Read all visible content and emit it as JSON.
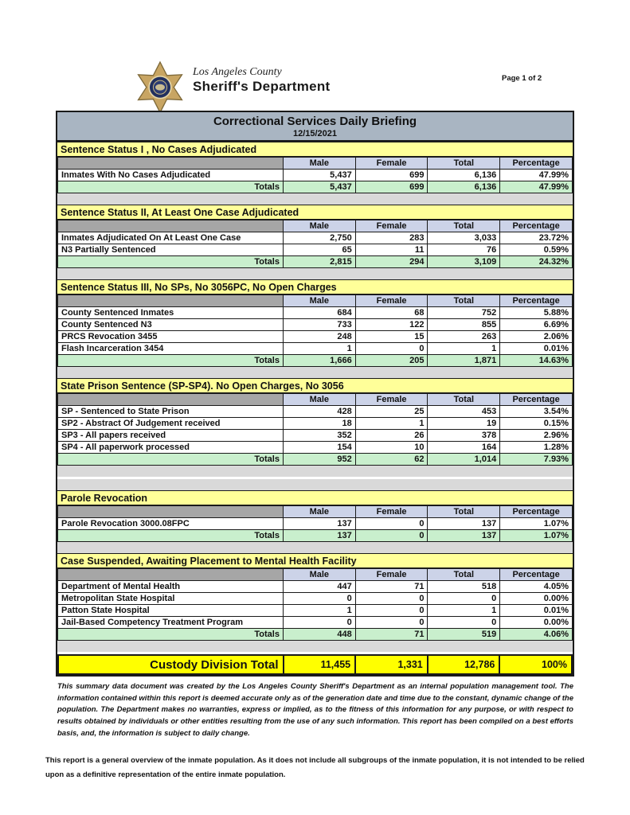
{
  "page": {
    "page_label": "Page 1 of 2"
  },
  "logo": {
    "county": "Los Angeles County",
    "department": "Sheriff's Department"
  },
  "title": {
    "heading": "Correctional Services Daily Briefing",
    "date": "12/15/2021"
  },
  "columns": [
    "Male",
    "Female",
    "Total",
    "Percentage"
  ],
  "totals_label": "Totals",
  "sections": [
    {
      "title": "Sentence Status I , No Cases Adjudicated",
      "rows": [
        [
          "Inmates With No Cases Adjudicated",
          "5,437",
          "699",
          "6,136",
          "47.99%"
        ]
      ],
      "totals": [
        "5,437",
        "699",
        "6,136",
        "47.99%"
      ],
      "spacers_after": 1
    },
    {
      "title": "Sentence Status II, At Least One Case Adjudicated",
      "rows": [
        [
          "Inmates Adjudicated On At Least One Case",
          "2,750",
          "283",
          "3,033",
          "23.72%"
        ],
        [
          "N3 Partially Sentenced",
          "65",
          "11",
          "76",
          "0.59%"
        ]
      ],
      "totals": [
        "2,815",
        "294",
        "3,109",
        "24.32%"
      ],
      "spacers_after": 1
    },
    {
      "title": "Sentence Status III, No SPs, No 3056PC, No Open Charges",
      "rows": [
        [
          "County Sentenced Inmates",
          "684",
          "68",
          "752",
          "5.88%"
        ],
        [
          "County Sentenced N3",
          "733",
          "122",
          "855",
          "6.69%"
        ],
        [
          "PRCS Revocation 3455",
          "248",
          "15",
          "263",
          "2.06%"
        ],
        [
          "Flash Incarceration 3454",
          "1",
          "0",
          "1",
          "0.01%"
        ]
      ],
      "totals": [
        "1,666",
        "205",
        "1,871",
        "14.63%"
      ],
      "spacers_after": 1
    },
    {
      "title": "State Prison Sentence (SP-SP4). No Open Charges, No 3056",
      "rows": [
        [
          "SP - Sentenced to State Prison",
          "428",
          "25",
          "453",
          "3.54%"
        ],
        [
          "SP2 - Abstract Of Judgement received",
          "18",
          "1",
          "19",
          "0.15%"
        ],
        [
          "SP3 - All papers received",
          "352",
          "26",
          "378",
          "2.96%"
        ],
        [
          "SP4 - All paperwork processed",
          "154",
          "10",
          "164",
          "1.28%"
        ]
      ],
      "totals": [
        "952",
        "62",
        "1,014",
        "7.93%"
      ],
      "spacers_after": 2
    },
    {
      "title": "Parole Revocation",
      "rows": [
        [
          "Parole Revocation 3000.08FPC",
          "137",
          "0",
          "137",
          "1.07%"
        ]
      ],
      "totals": [
        "137",
        "0",
        "137",
        "1.07%"
      ],
      "spacers_after": 1
    },
    {
      "title": "Case Suspended, Awaiting Placement to Mental Health Facility",
      "rows": [
        [
          "Department of Mental Health",
          "447",
          "71",
          "518",
          "4.05%"
        ],
        [
          "Metropolitan State Hospital",
          "0",
          "0",
          "0",
          "0.00%"
        ],
        [
          "Patton State Hospital",
          "1",
          "0",
          "1",
          "0.01%"
        ],
        [
          "Jail-Based Competency Treatment Program",
          "0",
          "0",
          "0",
          "0.00%"
        ]
      ],
      "totals": [
        "448",
        "71",
        "519",
        "4.06%"
      ],
      "spacers_after": 1
    }
  ],
  "grand_total": {
    "label": "Custody Division Total",
    "male": "11,455",
    "female": "1,331",
    "total": "12,786",
    "pct": "100%"
  },
  "footer": {
    "disclaimer": "This summary data document was created by the Los Angeles County Sheriff's Department as an internal population management tool.  The information contained within this report is deemed accurate only as of the generation date and time due to the constant, dynamic change of the population.  The Department makes no warranties, express or implied, as to the fitness of this information for any purpose, or with respect to results obtained by individuals or other entities resulting from the use of any such information.  This report has been compiled on a best efforts basis, and, the information is subject to daily change.",
    "note": "This report is a general overview of the inmate population.  As it does not include all subgroups of the inmate population, it is not intended to be relied upon as a definitive representation of the entire inmate population."
  },
  "colors": {
    "title_band": "#a9b5c2",
    "section_header": "#ffff99",
    "column_header": "#ccd3e8",
    "label_header": "#a6a6a6",
    "totals_row": "#c9efcd",
    "spacer": "#d9d9d9",
    "grand_total": "#ffff00",
    "border": "#1a1a1a"
  }
}
